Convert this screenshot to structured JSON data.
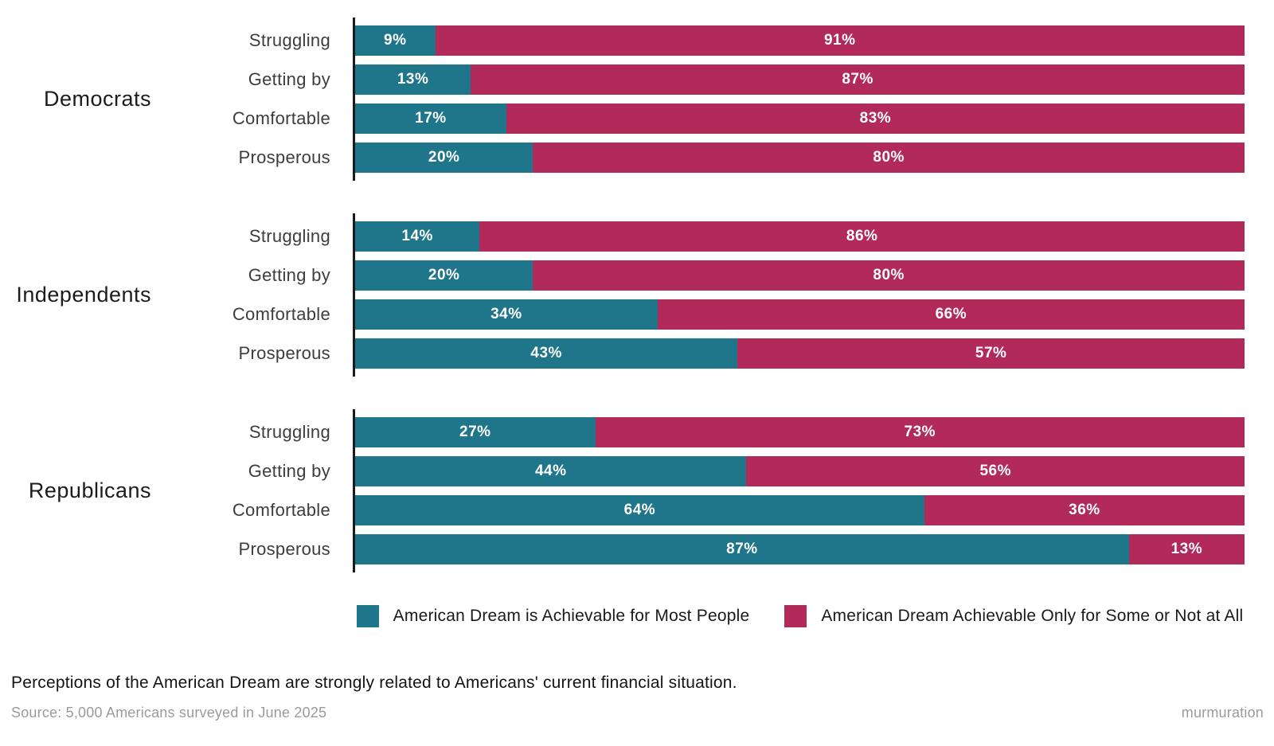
{
  "chart_data": {
    "type": "bar",
    "variant": "stacked-horizontal-100-percent",
    "unit": "%",
    "xlim": [
      0,
      100
    ],
    "legend_position": "bottom-center",
    "grid": false,
    "categories": [
      "Struggling",
      "Getting by",
      "Comfortable",
      "Prosperous"
    ],
    "series": [
      {
        "name": "American Dream is Achievable for Most People",
        "color": "#1f7589"
      },
      {
        "name": "American Dream Achievable Only for Some or Not at All",
        "color": "#b22a5a"
      }
    ],
    "groups": [
      {
        "label": "Democrats",
        "values": [
          [
            9,
            91
          ],
          [
            13,
            87
          ],
          [
            17,
            83
          ],
          [
            20,
            80
          ]
        ]
      },
      {
        "label": "Independents",
        "values": [
          [
            14,
            86
          ],
          [
            20,
            80
          ],
          [
            34,
            66
          ],
          [
            43,
            57
          ]
        ]
      },
      {
        "label": "Republicans",
        "values": [
          [
            27,
            73
          ],
          [
            44,
            56
          ],
          [
            64,
            36
          ],
          [
            87,
            13
          ]
        ]
      }
    ],
    "value_label_format": "{value}%",
    "caption": "Perceptions of the American Dream are strongly related to Americans' current financial situation.",
    "source": "Source: 5,000 Americans surveyed in June 2025",
    "brand": "murmuration",
    "axis_color": "#1a1a1a"
  }
}
